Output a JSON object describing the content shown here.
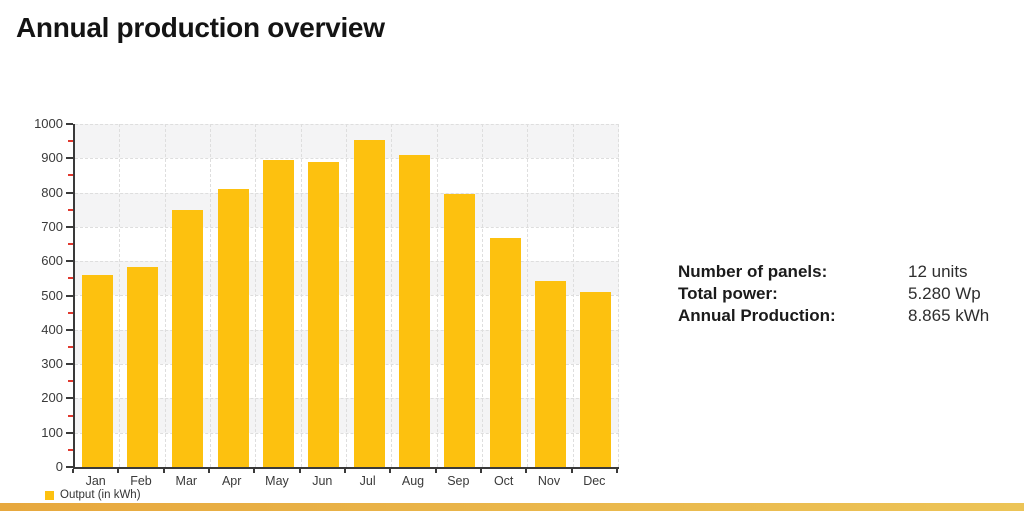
{
  "title": "Annual production overview",
  "chart_data": {
    "type": "bar",
    "title": "Annual production overview",
    "categories": [
      "Jan",
      "Feb",
      "Mar",
      "Apr",
      "May",
      "Jun",
      "Jul",
      "Aug",
      "Sep",
      "Oct",
      "Nov",
      "Dec"
    ],
    "values": [
      560,
      583,
      749,
      810,
      894,
      890,
      953,
      909,
      797,
      667,
      542,
      511
    ],
    "xlabel": "",
    "ylabel": "",
    "ylim": [
      0,
      1000
    ],
    "ytick_step": 100,
    "minor_tick_step": 50,
    "grid": "dashed horizontal and vertical, alternating shaded bands",
    "legend": {
      "label": "Output (in kWh)",
      "position": "bottom-left"
    },
    "colors": {
      "bar": "#FDC10F",
      "band_shade": "#F4F4F5",
      "gridline": "#DEDEDE",
      "axis": "#3A3A3A",
      "minor_tick": "#E0392F"
    }
  },
  "stats": {
    "rows": [
      {
        "label": "Number of panels:",
        "value": "12 units"
      },
      {
        "label": "Total power:",
        "value": "5.280 Wp"
      },
      {
        "label": "Annual Production:",
        "value": "8.865 kWh"
      }
    ]
  },
  "footer": {
    "bar_color_left": "#E7A83E",
    "bar_color_right": "#ECC457"
  }
}
